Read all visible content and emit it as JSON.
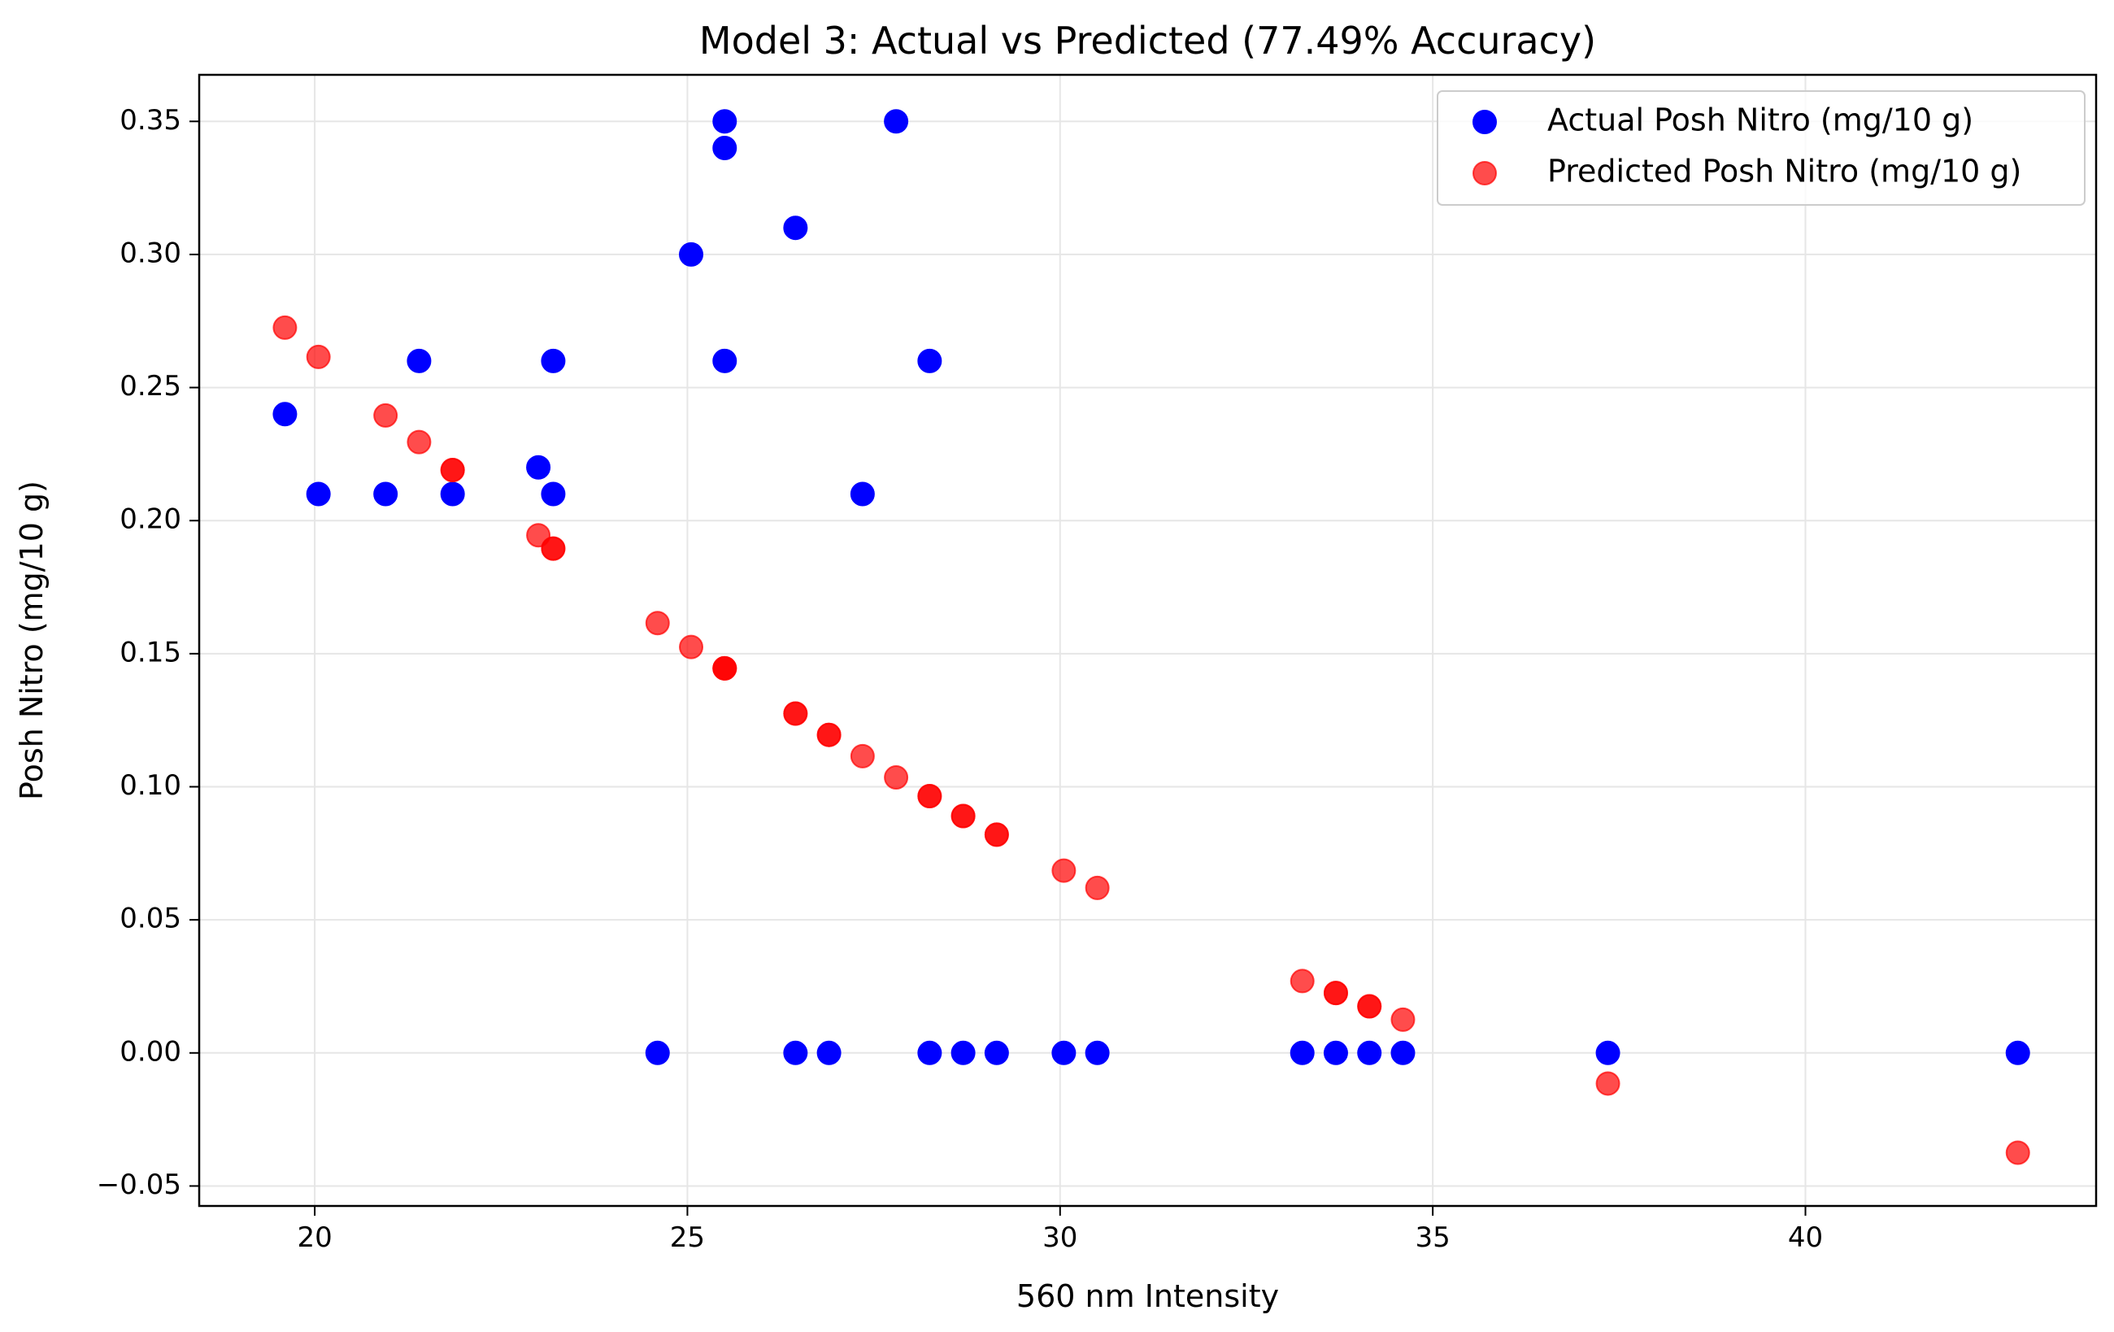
{
  "chart_data": {
    "type": "scatter",
    "title": "Model 3: Actual vs Predicted (77.49% Accuracy)",
    "xlabel": "560 nm Intensity",
    "ylabel": "Posh Nitro (mg/10 g)",
    "xlim": [
      18.45,
      43.9
    ],
    "ylim": [
      -0.0575,
      0.3675
    ],
    "xticks": [
      20,
      25,
      30,
      35,
      40
    ],
    "yticks": [
      -0.05,
      0.0,
      0.05,
      0.1,
      0.15,
      0.2,
      0.25,
      0.3,
      0.35
    ],
    "xtick_labels": [
      "20",
      "25",
      "30",
      "35",
      "40"
    ],
    "ytick_labels": [
      "−0.05",
      "0.00",
      "0.05",
      "0.10",
      "0.15",
      "0.20",
      "0.25",
      "0.30",
      "0.35"
    ],
    "grid": true,
    "legend_position": "top-right",
    "series": [
      {
        "name": "Actual Posh Nitro (mg/10 g)",
        "color": "#0000ff",
        "opacity": 1.0,
        "points": [
          [
            19.6,
            0.24
          ],
          [
            20.05,
            0.21
          ],
          [
            20.95,
            0.21
          ],
          [
            21.4,
            0.26
          ],
          [
            21.85,
            0.21
          ],
          [
            23.0,
            0.22
          ],
          [
            23.2,
            0.26
          ],
          [
            23.2,
            0.21
          ],
          [
            24.6,
            0.0
          ],
          [
            25.05,
            0.3
          ],
          [
            25.5,
            0.35
          ],
          [
            25.5,
            0.34
          ],
          [
            25.5,
            0.26
          ],
          [
            26.45,
            0.31
          ],
          [
            26.45,
            0.0
          ],
          [
            26.9,
            0.0
          ],
          [
            27.35,
            0.21
          ],
          [
            27.8,
            0.35
          ],
          [
            28.25,
            0.26
          ],
          [
            28.25,
            0.0
          ],
          [
            28.7,
            0.0
          ],
          [
            29.15,
            0.0
          ],
          [
            30.05,
            0.0
          ],
          [
            30.5,
            0.0
          ],
          [
            33.25,
            0.0
          ],
          [
            33.7,
            0.0
          ],
          [
            34.15,
            0.0
          ],
          [
            34.6,
            0.0
          ],
          [
            37.35,
            0.0
          ],
          [
            42.85,
            0.0
          ]
        ]
      },
      {
        "name": "Predicted Posh Nitro (mg/10 g)",
        "color": "#ff0000",
        "opacity": 0.7,
        "points": [
          [
            19.6,
            0.2725
          ],
          [
            20.05,
            0.2615
          ],
          [
            20.95,
            0.2395
          ],
          [
            21.4,
            0.2295
          ],
          [
            21.85,
            0.219
          ],
          [
            21.85,
            0.219
          ],
          [
            23.0,
            0.1945
          ],
          [
            23.2,
            0.1895
          ],
          [
            23.2,
            0.1895
          ],
          [
            24.6,
            0.1615
          ],
          [
            25.05,
            0.1525
          ],
          [
            25.5,
            0.1445
          ],
          [
            25.5,
            0.1445
          ],
          [
            25.5,
            0.1445
          ],
          [
            26.45,
            0.1275
          ],
          [
            26.45,
            0.1275
          ],
          [
            26.9,
            0.1195
          ],
          [
            26.9,
            0.1195
          ],
          [
            27.35,
            0.1115
          ],
          [
            27.8,
            0.1035
          ],
          [
            28.25,
            0.0965
          ],
          [
            28.25,
            0.0965
          ],
          [
            28.7,
            0.089
          ],
          [
            28.7,
            0.089
          ],
          [
            29.15,
            0.082
          ],
          [
            29.15,
            0.082
          ],
          [
            30.05,
            0.0685
          ],
          [
            30.5,
            0.062
          ],
          [
            33.25,
            0.027
          ],
          [
            33.7,
            0.0225
          ],
          [
            33.7,
            0.0225
          ],
          [
            34.15,
            0.0175
          ],
          [
            34.15,
            0.0175
          ],
          [
            34.6,
            0.0125
          ],
          [
            37.35,
            -0.0115
          ],
          [
            42.85,
            -0.0375
          ]
        ]
      }
    ]
  }
}
